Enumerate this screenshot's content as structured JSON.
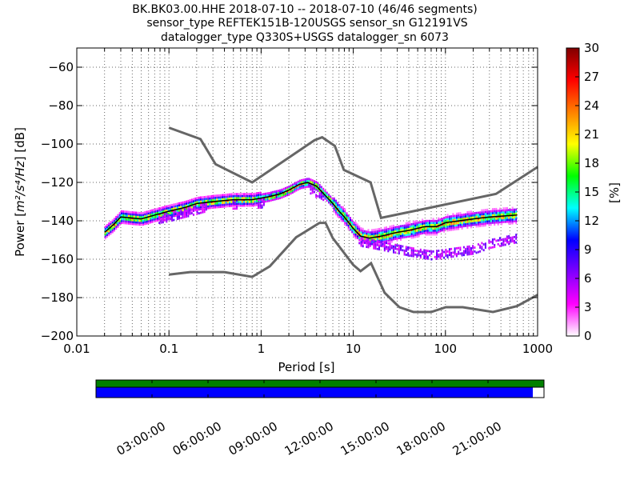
{
  "title_lines": [
    "BK.BK03.00.HHE   2018-07-10 -- 2018-07-10  (46/46 segments)",
    "sensor_type REFTEK151B-120USGS sensor_sn G12191VS",
    "datalogger_type Q330S+USGS datalogger_sn 6073"
  ],
  "chart_data": {
    "type": "heatmap",
    "xlabel": "Period [s]",
    "ylabel_prefix": "Power [",
    "ylabel_units": "m²/s⁴/Hz",
    "ylabel_suffix": "] [dB]",
    "x_scale": "log",
    "xlim": [
      0.01,
      1000
    ],
    "ylim": [
      -200,
      -50
    ],
    "x_ticks": [
      {
        "value": 0.01,
        "label": "0.01"
      },
      {
        "value": 0.1,
        "label": "0.1"
      },
      {
        "value": 1,
        "label": "1"
      },
      {
        "value": 10,
        "label": "10"
      },
      {
        "value": 100,
        "label": "100"
      },
      {
        "value": 1000,
        "label": "1000"
      }
    ],
    "y_ticks": [
      {
        "value": -60,
        "label": "−60"
      },
      {
        "value": -80,
        "label": "−80"
      },
      {
        "value": -100,
        "label": "−100"
      },
      {
        "value": -120,
        "label": "−120"
      },
      {
        "value": -140,
        "label": "−140"
      },
      {
        "value": -160,
        "label": "−160"
      },
      {
        "value": -180,
        "label": "−180"
      },
      {
        "value": -200,
        "label": "−200"
      }
    ],
    "grid": true,
    "noise_model_high": [
      [
        0.1,
        -91.5
      ],
      [
        0.22,
        -97.4
      ],
      [
        0.32,
        -110.5
      ],
      [
        0.8,
        -120
      ],
      [
        3.8,
        -98
      ],
      [
        4.6,
        -96.5
      ],
      [
        6.3,
        -101
      ],
      [
        7.9,
        -113.5
      ],
      [
        15.4,
        -120
      ],
      [
        20,
        -138.5
      ],
      [
        354,
        -126
      ],
      [
        1000,
        -112
      ]
    ],
    "noise_model_low": [
      [
        0.1,
        -168
      ],
      [
        0.17,
        -166.7
      ],
      [
        0.4,
        -166.7
      ],
      [
        0.8,
        -169.2
      ],
      [
        1.24,
        -163.7
      ],
      [
        2.4,
        -148.6
      ],
      [
        4.3,
        -141.1
      ],
      [
        5,
        -141.1
      ],
      [
        6,
        -149
      ],
      [
        10,
        -163
      ],
      [
        12,
        -166.2
      ],
      [
        15.6,
        -162.1
      ],
      [
        21.9,
        -177.5
      ],
      [
        31.6,
        -185
      ],
      [
        45,
        -187.5
      ],
      [
        70,
        -187.5
      ],
      [
        101,
        -185
      ],
      [
        154,
        -185
      ],
      [
        328,
        -187.5
      ],
      [
        600,
        -184.4
      ],
      [
        1000,
        -178.6
      ]
    ],
    "median_line": [
      [
        0.02,
        -146
      ],
      [
        0.025,
        -142
      ],
      [
        0.03,
        -138
      ],
      [
        0.05,
        -139
      ],
      [
        0.07,
        -137
      ],
      [
        0.1,
        -135
      ],
      [
        0.15,
        -133
      ],
      [
        0.2,
        -131
      ],
      [
        0.3,
        -130
      ],
      [
        0.5,
        -129
      ],
      [
        0.8,
        -129
      ],
      [
        1.2,
        -127.5
      ],
      [
        1.6,
        -126
      ],
      [
        2,
        -124
      ],
      [
        2.6,
        -121
      ],
      [
        3.2,
        -120
      ],
      [
        4,
        -122
      ],
      [
        5,
        -127
      ],
      [
        6,
        -131
      ],
      [
        7,
        -135
      ],
      [
        8,
        -138
      ],
      [
        10,
        -144
      ],
      [
        12,
        -148
      ],
      [
        15,
        -149
      ],
      [
        20,
        -148
      ],
      [
        30,
        -146
      ],
      [
        40,
        -145
      ],
      [
        60,
        -143
      ],
      [
        80,
        -143
      ],
      [
        100,
        -141
      ],
      [
        200,
        -139
      ],
      [
        300,
        -138
      ],
      [
        600,
        -137
      ]
    ],
    "series_low_mode": [
      [
        0.02,
        -146
      ],
      [
        0.03,
        -140
      ],
      [
        0.06,
        -140
      ],
      [
        0.1,
        -138
      ],
      [
        0.3,
        -132
      ],
      [
        1,
        -131
      ],
      [
        2,
        -126
      ],
      [
        3,
        -122
      ],
      [
        5,
        -129
      ],
      [
        8,
        -139
      ],
      [
        12,
        -151
      ],
      [
        20,
        -153
      ],
      [
        40,
        -156
      ],
      [
        70,
        -158
      ],
      [
        100,
        -157
      ],
      [
        200,
        -155
      ],
      [
        300,
        -152
      ],
      [
        600,
        -149
      ]
    ],
    "colorbar": {
      "label": "[%]",
      "min": 0,
      "max": 30,
      "ticks": [
        {
          "value": 0,
          "label": "0"
        },
        {
          "value": 3,
          "label": "3"
        },
        {
          "value": 6,
          "label": "6"
        },
        {
          "value": 9,
          "label": "9"
        },
        {
          "value": 12,
          "label": "12"
        },
        {
          "value": 15,
          "label": "15"
        },
        {
          "value": 18,
          "label": "18"
        },
        {
          "value": 21,
          "label": "21"
        },
        {
          "value": 24,
          "label": "24"
        },
        {
          "value": 27,
          "label": "27"
        },
        {
          "value": 30,
          "label": "30"
        }
      ],
      "colors": [
        "#ffffff",
        "#ff00ff",
        "#8000ff",
        "#0000ff",
        "#00ffff",
        "#00ff00",
        "#ffff00",
        "#ff8000",
        "#ff0000",
        "#800000"
      ]
    }
  },
  "coverage": {
    "ticks": [
      "03:00:00",
      "06:00:00",
      "09:00:00",
      "12:00:00",
      "15:00:00",
      "18:00:00",
      "21:00:00"
    ],
    "data_fraction": 0.975,
    "colors": {
      "top": "#008000",
      "bottom": "#0000ff"
    }
  },
  "colors": {
    "noise_model": "#666666",
    "median": "#000000"
  }
}
